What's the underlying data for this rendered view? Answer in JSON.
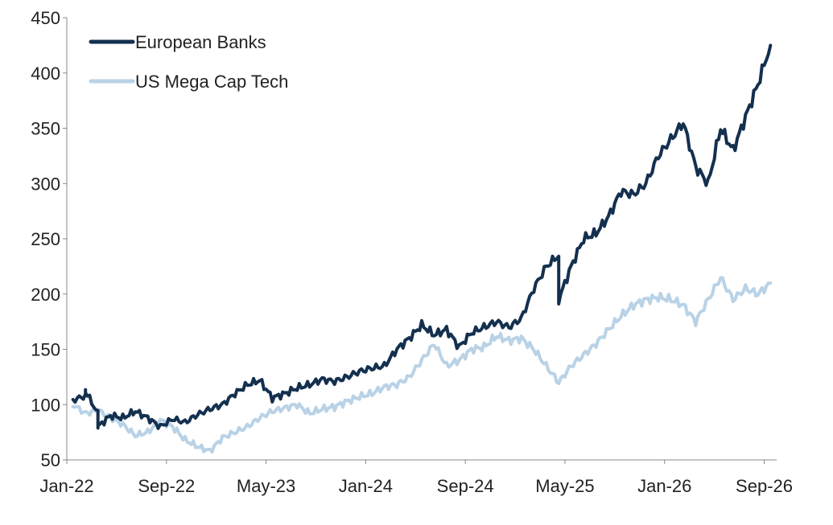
{
  "chart_data": {
    "type": "line",
    "title": "",
    "xlabel": "",
    "ylabel": "",
    "x_ticks": [
      "Jan-22",
      "Sep-22",
      "May-23",
      "Jan-24",
      "Sep-24",
      "May-25",
      "Jan-26",
      "Sep-26"
    ],
    "y_ticks": [
      "50",
      "100",
      "150",
      "200",
      "250",
      "300",
      "350",
      "400",
      "450"
    ],
    "ylim": [
      50,
      450
    ],
    "xlim": [
      "2022-01",
      "2026-09"
    ],
    "grid": false,
    "legend_position": "top-left",
    "series": [
      {
        "name": "European Banks",
        "color": "#14304f",
        "points": [
          [
            "2022-01",
            104
          ],
          [
            "2022-02",
            108
          ],
          [
            "2022-02",
            112
          ],
          [
            "2022-03",
            92
          ],
          [
            "2022-03",
            80
          ],
          [
            "2022-04",
            90
          ],
          [
            "2022-05",
            88
          ],
          [
            "2022-06",
            94
          ],
          [
            "2022-07",
            88
          ],
          [
            "2022-08",
            80
          ],
          [
            "2022-09",
            87
          ],
          [
            "2022-10",
            84
          ],
          [
            "2022-11",
            91
          ],
          [
            "2022-12",
            96
          ],
          [
            "2023-01",
            100
          ],
          [
            "2023-02",
            110
          ],
          [
            "2023-03",
            118
          ],
          [
            "2023-04",
            122
          ],
          [
            "2023-05",
            106
          ],
          [
            "2023-06",
            110
          ],
          [
            "2023-07",
            115
          ],
          [
            "2023-08",
            118
          ],
          [
            "2023-09",
            123
          ],
          [
            "2023-10",
            121
          ],
          [
            "2023-11",
            125
          ],
          [
            "2023-12",
            130
          ],
          [
            "2024-01",
            133
          ],
          [
            "2024-02",
            135
          ],
          [
            "2024-03",
            150
          ],
          [
            "2024-04",
            160
          ],
          [
            "2024-05",
            172
          ],
          [
            "2024-06",
            163
          ],
          [
            "2024-07",
            168
          ],
          [
            "2024-08",
            152
          ],
          [
            "2024-09",
            165
          ],
          [
            "2024-10",
            170
          ],
          [
            "2024-11",
            175
          ],
          [
            "2024-12",
            170
          ],
          [
            "2025-01",
            178
          ],
          [
            "2025-02",
            205
          ],
          [
            "2025-03",
            225
          ],
          [
            "2025-04",
            235
          ],
          [
            "2025-04",
            195
          ],
          [
            "2025-05",
            225
          ],
          [
            "2025-06",
            250
          ],
          [
            "2025-07",
            255
          ],
          [
            "2025-08",
            270
          ],
          [
            "2025-09",
            293
          ],
          [
            "2025-10",
            290
          ],
          [
            "2025-11",
            300
          ],
          [
            "2025-12",
            325
          ],
          [
            "2026-01",
            340
          ],
          [
            "2026-02",
            355
          ],
          [
            "2026-03",
            315
          ],
          [
            "2026-04",
            300
          ],
          [
            "2026-05",
            350
          ],
          [
            "2026-06",
            330
          ],
          [
            "2026-07",
            360
          ],
          [
            "2026-08",
            390
          ],
          [
            "2026-09",
            425
          ]
        ]
      },
      {
        "name": "US Mega Cap Tech",
        "color": "#b9d2e6",
        "points": [
          [
            "2022-01",
            100
          ],
          [
            "2022-02",
            92
          ],
          [
            "2022-03",
            95
          ],
          [
            "2022-04",
            88
          ],
          [
            "2022-05",
            82
          ],
          [
            "2022-06",
            72
          ],
          [
            "2022-07",
            75
          ],
          [
            "2022-08",
            86
          ],
          [
            "2022-09",
            80
          ],
          [
            "2022-10",
            68
          ],
          [
            "2022-11",
            62
          ],
          [
            "2022-12",
            58
          ],
          [
            "2023-01",
            70
          ],
          [
            "2023-02",
            75
          ],
          [
            "2023-03",
            80
          ],
          [
            "2023-04",
            88
          ],
          [
            "2023-05",
            94
          ],
          [
            "2023-06",
            97
          ],
          [
            "2023-07",
            100
          ],
          [
            "2023-08",
            92
          ],
          [
            "2023-09",
            96
          ],
          [
            "2023-10",
            98
          ],
          [
            "2023-11",
            103
          ],
          [
            "2023-12",
            107
          ],
          [
            "2024-01",
            110
          ],
          [
            "2024-02",
            116
          ],
          [
            "2024-03",
            118
          ],
          [
            "2024-04",
            125
          ],
          [
            "2024-05",
            140
          ],
          [
            "2024-06",
            155
          ],
          [
            "2024-07",
            135
          ],
          [
            "2024-08",
            140
          ],
          [
            "2024-09",
            150
          ],
          [
            "2024-10",
            152
          ],
          [
            "2024-11",
            162
          ],
          [
            "2024-12",
            158
          ],
          [
            "2025-01",
            160
          ],
          [
            "2025-02",
            150
          ],
          [
            "2025-03",
            135
          ],
          [
            "2025-04",
            120
          ],
          [
            "2025-05",
            135
          ],
          [
            "2025-06",
            145
          ],
          [
            "2025-07",
            155
          ],
          [
            "2025-08",
            168
          ],
          [
            "2025-09",
            180
          ],
          [
            "2025-10",
            190
          ],
          [
            "2025-11",
            195
          ],
          [
            "2025-12",
            197
          ],
          [
            "2026-01",
            195
          ],
          [
            "2026-02",
            190
          ],
          [
            "2026-03",
            175
          ],
          [
            "2026-04",
            195
          ],
          [
            "2026-05",
            215
          ],
          [
            "2026-06",
            195
          ],
          [
            "2026-07",
            205
          ],
          [
            "2026-08",
            200
          ],
          [
            "2026-09",
            210
          ]
        ]
      }
    ]
  }
}
